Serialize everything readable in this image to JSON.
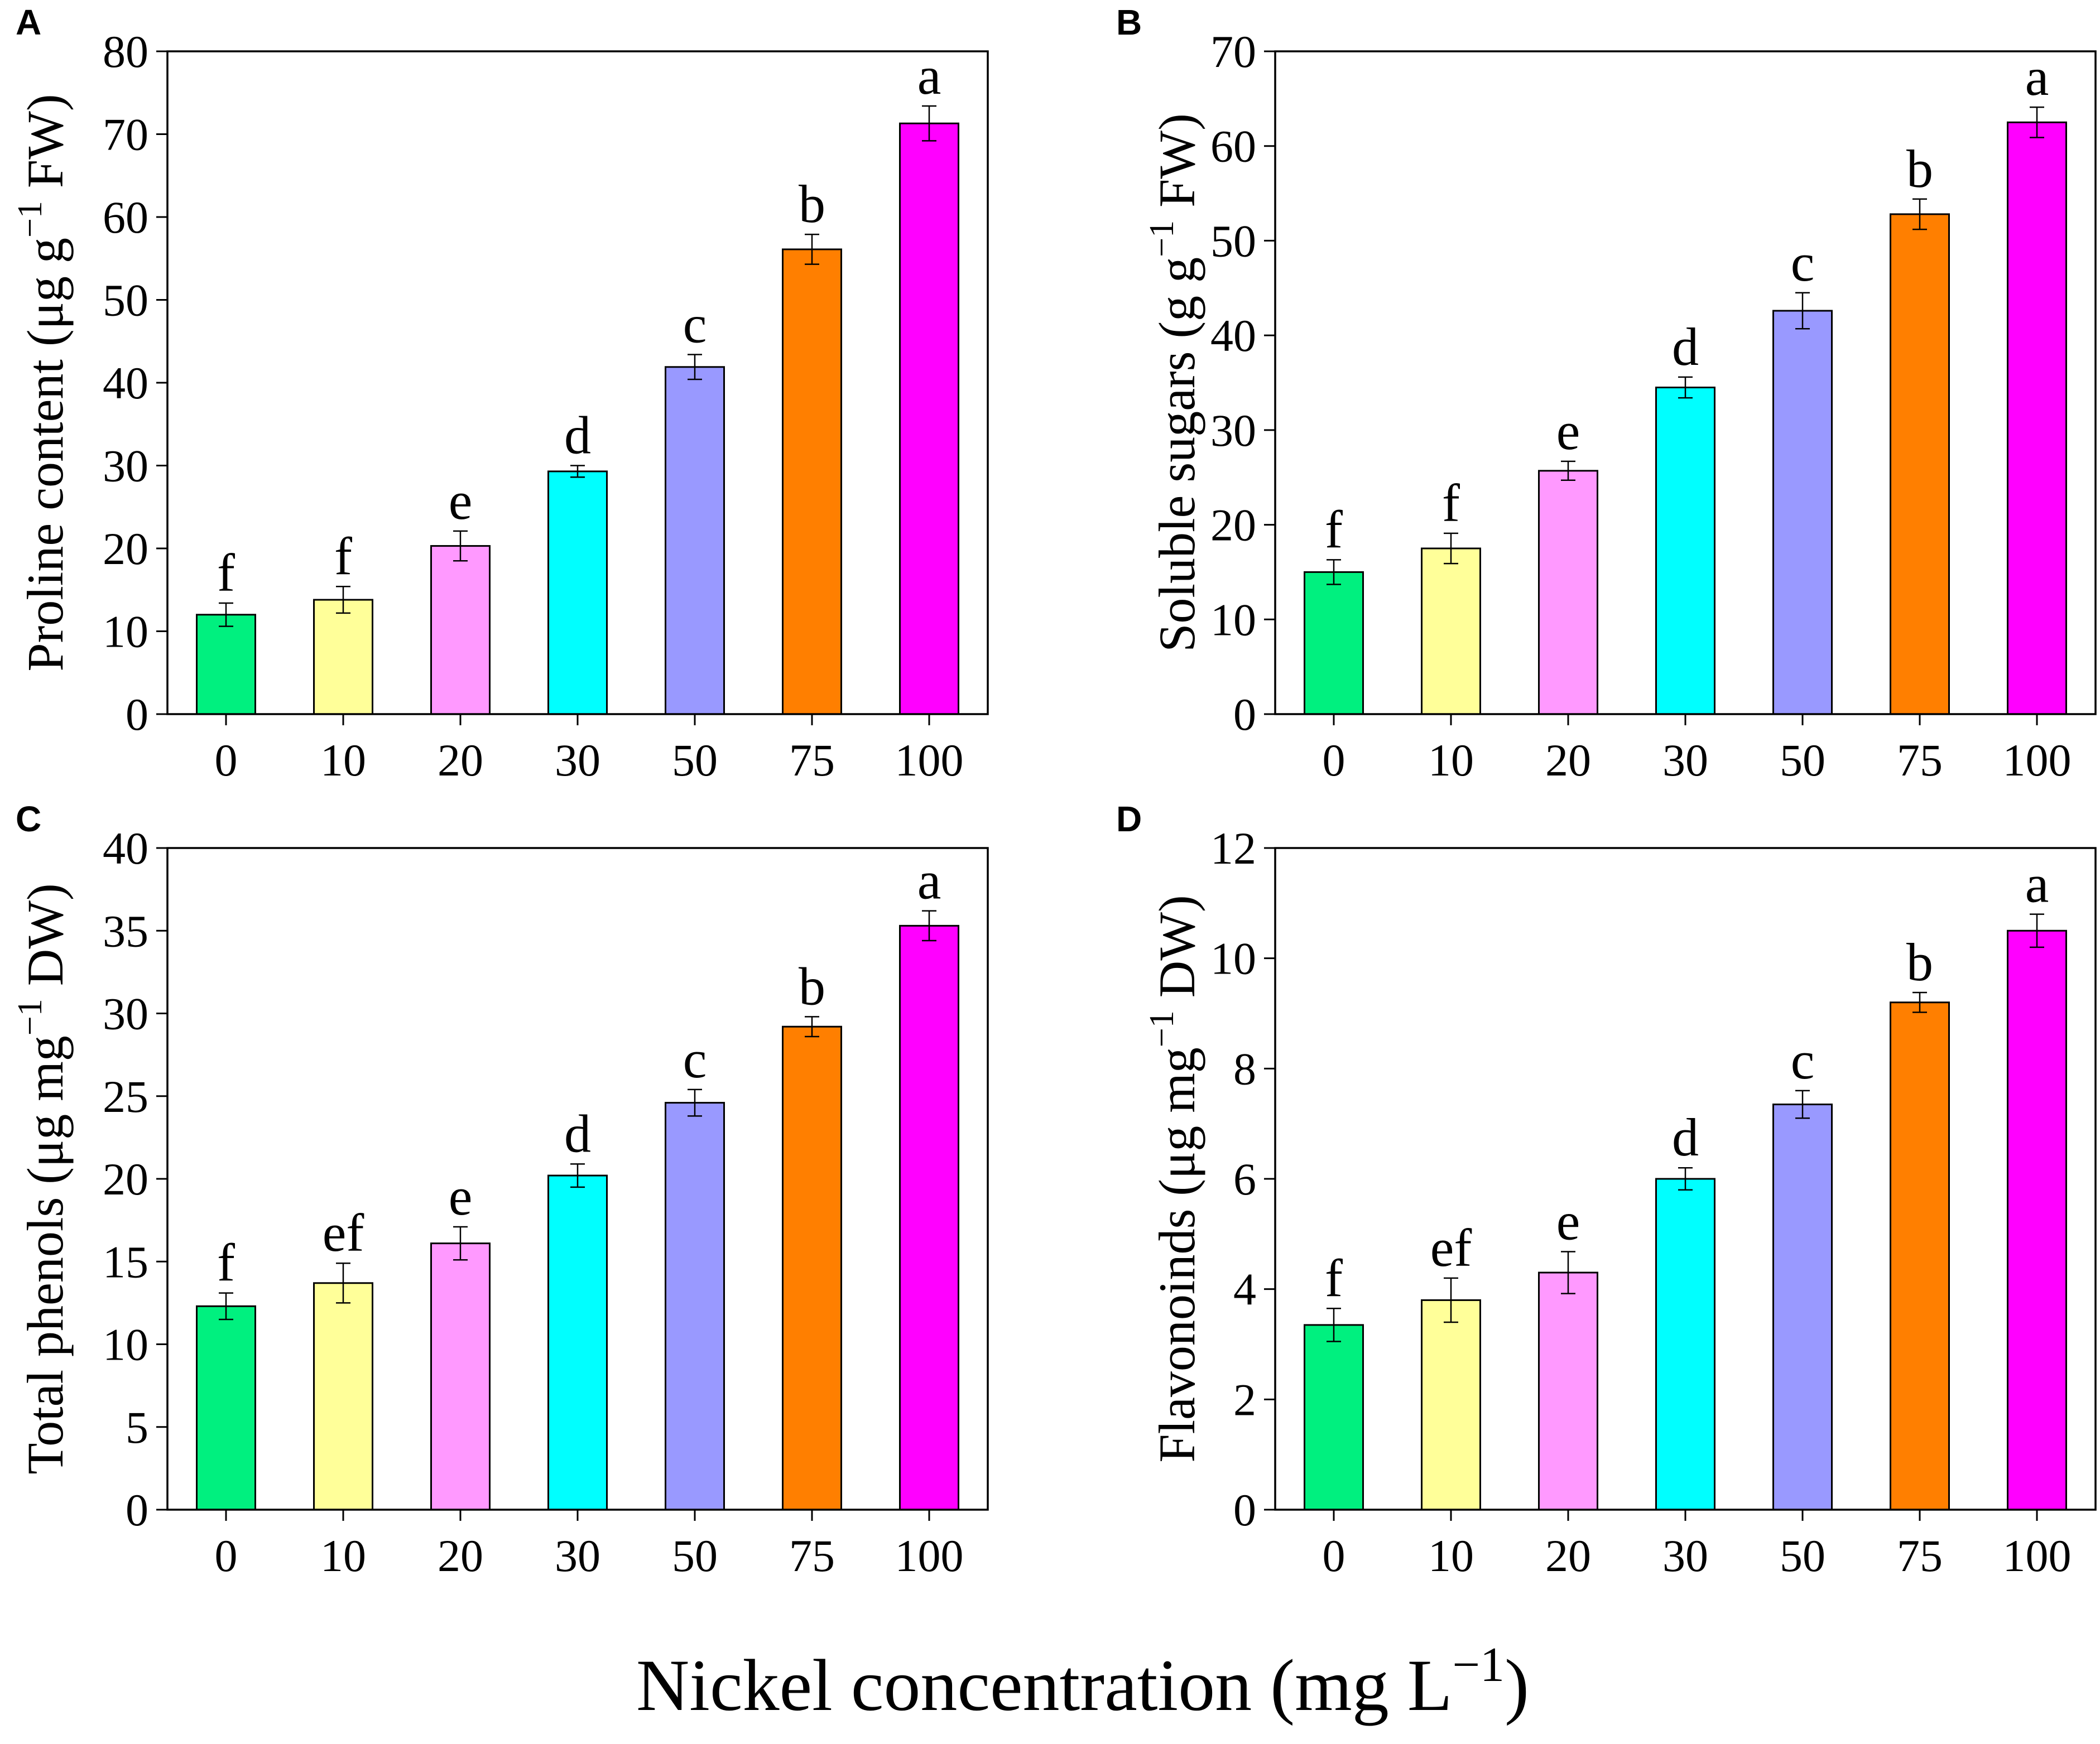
{
  "figure": {
    "xlabel": {
      "text": "Nickel concentration (mg L",
      "sup": "−1",
      "suffix": ")"
    }
  },
  "chart_data": [
    {
      "type": "bar",
      "panel_label": "A",
      "title": "",
      "ylabel": {
        "text": "Proline content (μg g",
        "sup": "−1",
        "suffix": " FW)"
      },
      "categories": [
        "0",
        "10",
        "20",
        "30",
        "50",
        "75",
        "100"
      ],
      "values": [
        12.0,
        13.8,
        20.3,
        29.3,
        41.9,
        56.1,
        71.3
      ],
      "errors": [
        1.4,
        1.6,
        1.8,
        0.7,
        1.5,
        1.8,
        2.1
      ],
      "letters": [
        "f",
        "f",
        "e",
        "d",
        "c",
        "b",
        "a"
      ],
      "ylim": [
        0,
        80
      ],
      "yticks": [
        0,
        10,
        20,
        30,
        40,
        50,
        60,
        70,
        80
      ],
      "grid": false,
      "colors": [
        "#00f07f",
        "#ffff99",
        "#ff99ff",
        "#00ffff",
        "#9999ff",
        "#ff7f00",
        "#ff00ff"
      ]
    },
    {
      "type": "bar",
      "panel_label": "B",
      "title": "",
      "ylabel": {
        "text": "Soluble sugars (g g",
        "sup": "−1",
        "suffix": " FW)"
      },
      "categories": [
        "0",
        "10",
        "20",
        "30",
        "50",
        "75",
        "100"
      ],
      "values": [
        15.0,
        17.5,
        25.7,
        34.5,
        42.6,
        52.8,
        62.5
      ],
      "errors": [
        1.3,
        1.6,
        1.0,
        1.1,
        1.9,
        1.6,
        1.6
      ],
      "letters": [
        "f",
        "f",
        "e",
        "d",
        "c",
        "b",
        "a"
      ],
      "ylim": [
        0,
        70
      ],
      "yticks": [
        0,
        10,
        20,
        30,
        40,
        50,
        60,
        70
      ],
      "grid": false,
      "colors": [
        "#00f07f",
        "#ffff99",
        "#ff99ff",
        "#00ffff",
        "#9999ff",
        "#ff7f00",
        "#ff00ff"
      ]
    },
    {
      "type": "bar",
      "panel_label": "C",
      "title": "",
      "ylabel": {
        "text": "Total phenols (μg mg",
        "sup": "−1",
        "suffix": " DW)"
      },
      "categories": [
        "0",
        "10",
        "20",
        "30",
        "50",
        "75",
        "100"
      ],
      "values": [
        12.3,
        13.7,
        16.1,
        20.2,
        24.6,
        29.2,
        35.3
      ],
      "errors": [
        0.8,
        1.2,
        1.0,
        0.7,
        0.8,
        0.6,
        0.9
      ],
      "letters": [
        "f",
        "ef",
        "e",
        "d",
        "c",
        "b",
        "a"
      ],
      "ylim": [
        0,
        40
      ],
      "yticks": [
        0,
        5,
        10,
        15,
        20,
        25,
        30,
        35,
        40
      ],
      "grid": false,
      "colors": [
        "#00f07f",
        "#ffff99",
        "#ff99ff",
        "#00ffff",
        "#9999ff",
        "#ff7f00",
        "#ff00ff"
      ]
    },
    {
      "type": "bar",
      "panel_label": "D",
      "title": "",
      "ylabel": {
        "text": "Flavonoinds (μg mg",
        "sup": "−1",
        "suffix": " DW)"
      },
      "categories": [
        "0",
        "10",
        "20",
        "30",
        "50",
        "75",
        "100"
      ],
      "values": [
        3.35,
        3.8,
        4.3,
        6.0,
        7.35,
        9.2,
        10.5
      ],
      "errors": [
        0.3,
        0.4,
        0.38,
        0.2,
        0.25,
        0.18,
        0.3
      ],
      "letters": [
        "f",
        "ef",
        "e",
        "d",
        "c",
        "b",
        "a"
      ],
      "ylim": [
        0,
        12
      ],
      "yticks": [
        0,
        2,
        4,
        6,
        8,
        10,
        12
      ],
      "grid": false,
      "colors": [
        "#00f07f",
        "#ffff99",
        "#ff99ff",
        "#00ffff",
        "#9999ff",
        "#ff7f00",
        "#ff00ff"
      ]
    }
  ]
}
